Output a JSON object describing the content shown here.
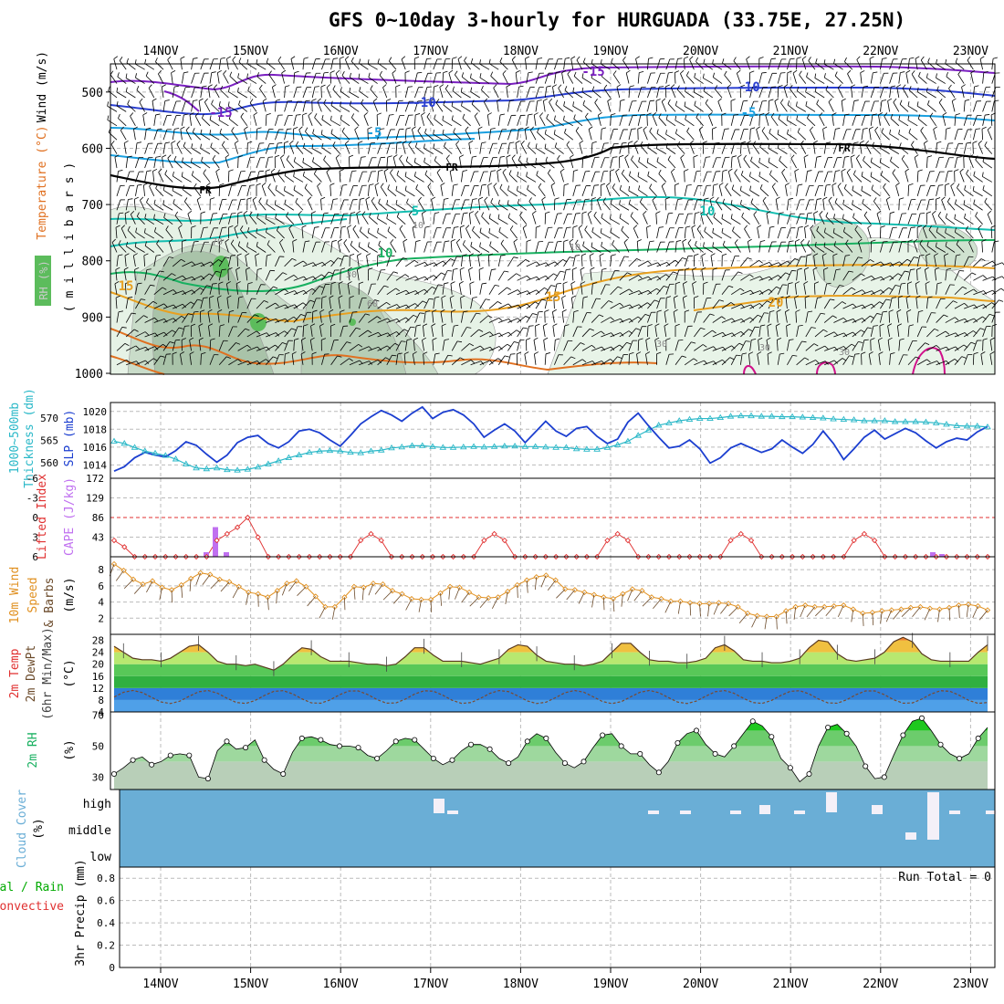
{
  "title": "GFS 0~10day 3-hourly for HURGUADA (33.75E, 27.25N)",
  "colors": {
    "purple": "#7a1fc0",
    "blue": "#2a3fd0",
    "sky": "#1aa0e0",
    "teal": "#13bdb0",
    "green": "#18b060",
    "orange": "#e8a020",
    "darkorange": "#e07020",
    "magenta": "#d0108a",
    "slp": "#1c3fd0",
    "thick": "#2ab8c8",
    "li": "#e03030",
    "cape": "#c070f0",
    "wind": "#e09020",
    "barb": "#6b4a2a",
    "cloud": "#6aaed6",
    "precip": "#00aa00"
  },
  "date_labels": [
    "14NOV",
    "15NOV",
    "16NOV",
    "17NOV",
    "18NOV",
    "19NOV",
    "20NOV",
    "21NOV",
    "22NOV",
    "23NOV"
  ],
  "panel_labels": {
    "upper_wind": "Wind (m/s)",
    "upper_temp": "Temperature (°C)",
    "upper_rh": "RH (%)",
    "upper_mb": "( m i l l i b a r s )",
    "thick": "1000~500mb",
    "thick2": "Thickness (dm)",
    "slp": "SLP (mb)",
    "li": "Lifted Index",
    "cape": "CAPE (J/kg)",
    "wind10": "10m Wind",
    "wind10b": "Speed",
    "wind10c": "& Barbs",
    "wind10u": "(m/s)",
    "t2": "2m Temp",
    "t2b": "2m DewPt",
    "t2c": "(6hr Min/Max)",
    "t2u": "(°C)",
    "rh2": "2m RH",
    "rh2u": "(%)",
    "cloud": "Cloud Cover",
    "cloudu": "(%)",
    "precip": "3hr Precip (mm)",
    "precip1": "Total / Rain",
    "precip2": "Convective",
    "run_total": "Run Total = 0"
  },
  "upper_ticks": [
    "500",
    "600",
    "700",
    "800",
    "900",
    "1000"
  ],
  "isotherm_labels": [
    "-15",
    "-15",
    "-10",
    "-10",
    "-5",
    "-5",
    "FR",
    "FR",
    "FR",
    "5",
    "10",
    "10",
    "15",
    "15",
    "20"
  ],
  "rh_labels": [
    "10",
    "10",
    "30",
    "30",
    "60",
    "70",
    "30",
    "30"
  ],
  "slp_ticks": [
    "1014",
    "1016",
    "1018",
    "1020"
  ],
  "thick_ticks": [
    "560",
    "565",
    "570"
  ],
  "li_ticks": [
    "-6",
    "-3",
    "0",
    "3",
    "6"
  ],
  "cape_ticks": [
    "172",
    "129",
    "86",
    "43"
  ],
  "wind_ticks": [
    "8",
    "6",
    "4",
    "2"
  ],
  "t2_ticks": [
    "28",
    "24",
    "20",
    "16",
    "12",
    "8",
    "4"
  ],
  "rh2_ticks": [
    "70",
    "50",
    "30"
  ],
  "cloud_ticks": [
    "high",
    "middle",
    "low"
  ],
  "precip_ticks": [
    "0.8",
    "0.6",
    "0.4",
    "0.2",
    "0"
  ],
  "chart_data": [
    {
      "type": "line",
      "name": "slp",
      "title": "SLP (mb)",
      "ylim": [
        1012.5,
        1021
      ],
      "values": [
        1013.3,
        1013.8,
        1014.8,
        1015.4,
        1015.1,
        1014.9,
        1015.6,
        1016.6,
        1016.2,
        1015.2,
        1014.3,
        1015.1,
        1016.5,
        1017.1,
        1017.3,
        1016.4,
        1015.9,
        1016.6,
        1017.8,
        1018.0,
        1017.6,
        1016.8,
        1016.1,
        1017.3,
        1018.6,
        1019.4,
        1020.1,
        1019.6,
        1018.9,
        1019.8,
        1020.5,
        1019.2,
        1019.9,
        1020.2,
        1019.6,
        1018.6,
        1017.1,
        1017.9,
        1018.6,
        1017.8,
        1016.5,
        1017.7,
        1018.9,
        1017.8,
        1017.2,
        1018.1,
        1018.3,
        1017.2,
        1016.4,
        1016.9,
        1018.8,
        1019.8,
        1018.4,
        1017.1,
        1015.9,
        1016.1,
        1016.8,
        1015.8,
        1014.2,
        1014.8,
        1015.9,
        1016.4,
        1015.9,
        1015.4,
        1015.8,
        1016.8,
        1016.0,
        1015.3,
        1016.3,
        1017.8,
        1016.4,
        1014.6,
        1015.8,
        1017.1,
        1017.9,
        1016.9,
        1017.5,
        1018.1,
        1017.6,
        1016.7,
        1015.9,
        1016.6,
        1017.0,
        1016.8,
        1017.7,
        1018.3
      ]
    },
    {
      "type": "line",
      "name": "thickness",
      "title": "1000~500mb Thickness (dm)",
      "ylim": [
        556.5,
        573.5
      ],
      "values": [
        564.8,
        564.3,
        563.4,
        562.6,
        562.1,
        561.6,
        560.8,
        559.7,
        558.8,
        558.6,
        558.8,
        558.4,
        558.3,
        558.5,
        559.0,
        559.7,
        560.4,
        561.1,
        561.7,
        562.3,
        562.6,
        562.7,
        562.6,
        562.3,
        562.2,
        562.6,
        562.8,
        563.3,
        563.5,
        563.8,
        563.8,
        563.6,
        563.4,
        563.4,
        563.5,
        563.6,
        563.5,
        563.6,
        563.7,
        563.7,
        563.6,
        563.6,
        563.5,
        563.4,
        563.4,
        563.1,
        563.0,
        563.0,
        563.4,
        564.0,
        564.8,
        566.1,
        567.3,
        568.4,
        568.9,
        569.4,
        569.7,
        569.9,
        569.9,
        570.1,
        570.4,
        570.5,
        570.5,
        570.4,
        570.4,
        570.3,
        570.3,
        570.2,
        570.1,
        570.0,
        569.8,
        569.7,
        569.6,
        569.4,
        569.4,
        569.4,
        569.2,
        569.2,
        569.2,
        569.1,
        568.9,
        568.6,
        568.3,
        568.2,
        568.2,
        568.0
      ]
    },
    {
      "type": "line",
      "name": "lifted_index",
      "title": "Lifted Index",
      "ylim": [
        6,
        -6
      ],
      "values": [
        3.5,
        4.5,
        6,
        6,
        6,
        6,
        6,
        6,
        6,
        6,
        3.5,
        2.5,
        1.5,
        0,
        3,
        6,
        6,
        6,
        6,
        6,
        6,
        6,
        6,
        6,
        3.5,
        2.5,
        3.5,
        6,
        6,
        6,
        6,
        6,
        6,
        6,
        6,
        6,
        3.5,
        2.5,
        3.5,
        6,
        6,
        6,
        6,
        6,
        6,
        6,
        6,
        6,
        3.5,
        2.5,
        3.5,
        6,
        6,
        6,
        6,
        6,
        6,
        6,
        6,
        6,
        3.5,
        2.5,
        3.5,
        6,
        6,
        6,
        6,
        6,
        6,
        6,
        6,
        6,
        3.5,
        2.5,
        3.5,
        6,
        6,
        6,
        6,
        6,
        6,
        6,
        6,
        6,
        6,
        6
      ]
    },
    {
      "type": "bar",
      "name": "cape",
      "title": "CAPE (J/kg)",
      "ylim": [
        0,
        172
      ],
      "values": [
        0,
        0,
        0,
        0,
        0,
        0,
        0,
        0,
        0,
        0,
        0,
        0,
        0,
        0,
        0,
        0,
        0,
        0,
        0,
        0,
        0,
        0,
        0,
        0,
        0,
        0,
        0,
        0,
        0,
        0,
        0,
        0,
        0,
        0,
        0,
        0,
        0,
        0,
        0,
        0,
        0,
        0,
        0,
        0,
        0,
        0,
        0,
        0,
        0,
        0,
        0,
        0,
        0,
        0,
        0,
        0,
        0,
        0,
        0,
        0,
        0,
        0,
        0,
        0,
        0,
        0,
        0,
        0,
        0,
        0,
        0,
        0,
        0,
        0,
        0,
        0,
        0,
        0,
        0,
        0,
        0,
        0,
        0,
        0,
        0,
        0
      ]
    },
    {
      "type": "line",
      "name": "wind10",
      "title": "10m Wind Speed (m/s)",
      "ylim": [
        0,
        9.6
      ],
      "values": [
        8.7,
        7.9,
        6.8,
        6.2,
        6.6,
        5.8,
        5.5,
        6.1,
        6.9,
        7.6,
        7.4,
        6.8,
        6.5,
        5.9,
        5.2,
        5.0,
        4.6,
        5.4,
        6.3,
        6.6,
        5.9,
        4.7,
        3.4,
        3.4,
        4.6,
        5.9,
        5.8,
        6.3,
        6.2,
        5.4,
        5.0,
        4.4,
        4.3,
        4.3,
        5.1,
        5.9,
        5.8,
        5.2,
        4.6,
        4.5,
        4.6,
        5.3,
        6.1,
        6.7,
        7.1,
        7.3,
        6.7,
        5.6,
        5.5,
        5.2,
        4.9,
        4.6,
        4.4,
        5.0,
        5.6,
        5.4,
        4.6,
        4.4,
        4.1,
        4.1,
        3.9,
        3.8,
        3.8,
        3.9,
        3.8,
        3.4,
        2.6,
        2.3,
        2.2,
        2.2,
        2.9,
        3.4,
        3.6,
        3.4,
        3.4,
        3.5,
        3.6,
        3.1,
        2.6,
        2.7,
        2.9,
        3.0,
        3.1,
        3.3,
        3.4,
        3.2,
        3.1,
        3.3,
        3.6,
        3.7,
        3.5,
        3.0
      ]
    },
    {
      "type": "area",
      "name": "temp2m",
      "title": "2m Temp (°C)",
      "ylim": [
        4,
        30
      ],
      "values": [
        26,
        24,
        22,
        21.5,
        21.5,
        21,
        22,
        24,
        26,
        26.5,
        24,
        21,
        20,
        20,
        19.5,
        20,
        19,
        18,
        20,
        23,
        25.5,
        25,
        22.5,
        21,
        21,
        21,
        20.5,
        20,
        20,
        19.5,
        20,
        22.5,
        25.5,
        25.5,
        23,
        21,
        21,
        21,
        20.5,
        20,
        21,
        22,
        25,
        26.5,
        26,
        23,
        21,
        20.5,
        20,
        20,
        19.5,
        20,
        21,
        24,
        27,
        27,
        24,
        21.5,
        21,
        21,
        20.5,
        20.5,
        21,
        22,
        25.5,
        26.5,
        24.5,
        21.5,
        21,
        21,
        20.5,
        20.5,
        21,
        22,
        25.5,
        28,
        27.5,
        23.5,
        21.5,
        21,
        21.5,
        22,
        24,
        27.5,
        29,
        27.5,
        23.5,
        21.5,
        21,
        21,
        21,
        21,
        24,
        26.5
      ]
    },
    {
      "type": "area",
      "name": "rh2m",
      "title": "2m RH (%)",
      "ylim": [
        22,
        72
      ],
      "values": [
        32,
        36,
        41,
        43,
        38,
        40,
        44,
        45,
        44,
        30,
        29,
        47,
        53,
        48,
        49,
        54,
        41,
        35,
        32,
        46,
        55,
        56,
        54,
        51,
        50,
        50,
        49,
        44,
        42,
        47,
        53,
        55,
        54,
        48,
        42,
        38,
        41,
        47,
        51,
        51,
        48,
        42,
        39,
        43,
        53,
        58,
        55,
        46,
        39,
        36,
        40,
        49,
        57,
        58,
        50,
        45,
        45,
        38,
        33,
        40,
        52,
        58,
        60,
        51,
        45,
        43,
        50,
        58,
        66,
        63,
        56,
        42,
        36,
        27,
        32,
        50,
        62,
        64,
        58,
        50,
        37,
        29,
        30,
        44,
        57,
        66,
        68,
        60,
        51,
        45,
        42,
        45,
        55,
        62
      ]
    },
    {
      "type": "bar",
      "name": "precip",
      "title": "3hr Precip (mm)",
      "ylim": [
        0,
        0.9
      ],
      "values": [
        0,
        0,
        0,
        0,
        0,
        0,
        0,
        0,
        0,
        0,
        0,
        0,
        0,
        0,
        0,
        0,
        0,
        0,
        0,
        0,
        0,
        0,
        0,
        0,
        0,
        0,
        0,
        0,
        0,
        0,
        0,
        0,
        0,
        0,
        0,
        0,
        0,
        0,
        0,
        0,
        0,
        0,
        0,
        0,
        0,
        0,
        0,
        0,
        0,
        0,
        0,
        0,
        0,
        0,
        0,
        0,
        0,
        0,
        0,
        0,
        0,
        0,
        0,
        0,
        0,
        0,
        0,
        0,
        0,
        0,
        0,
        0,
        0,
        0,
        0,
        0,
        0,
        0,
        0,
        0,
        0,
        0
      ]
    }
  ]
}
